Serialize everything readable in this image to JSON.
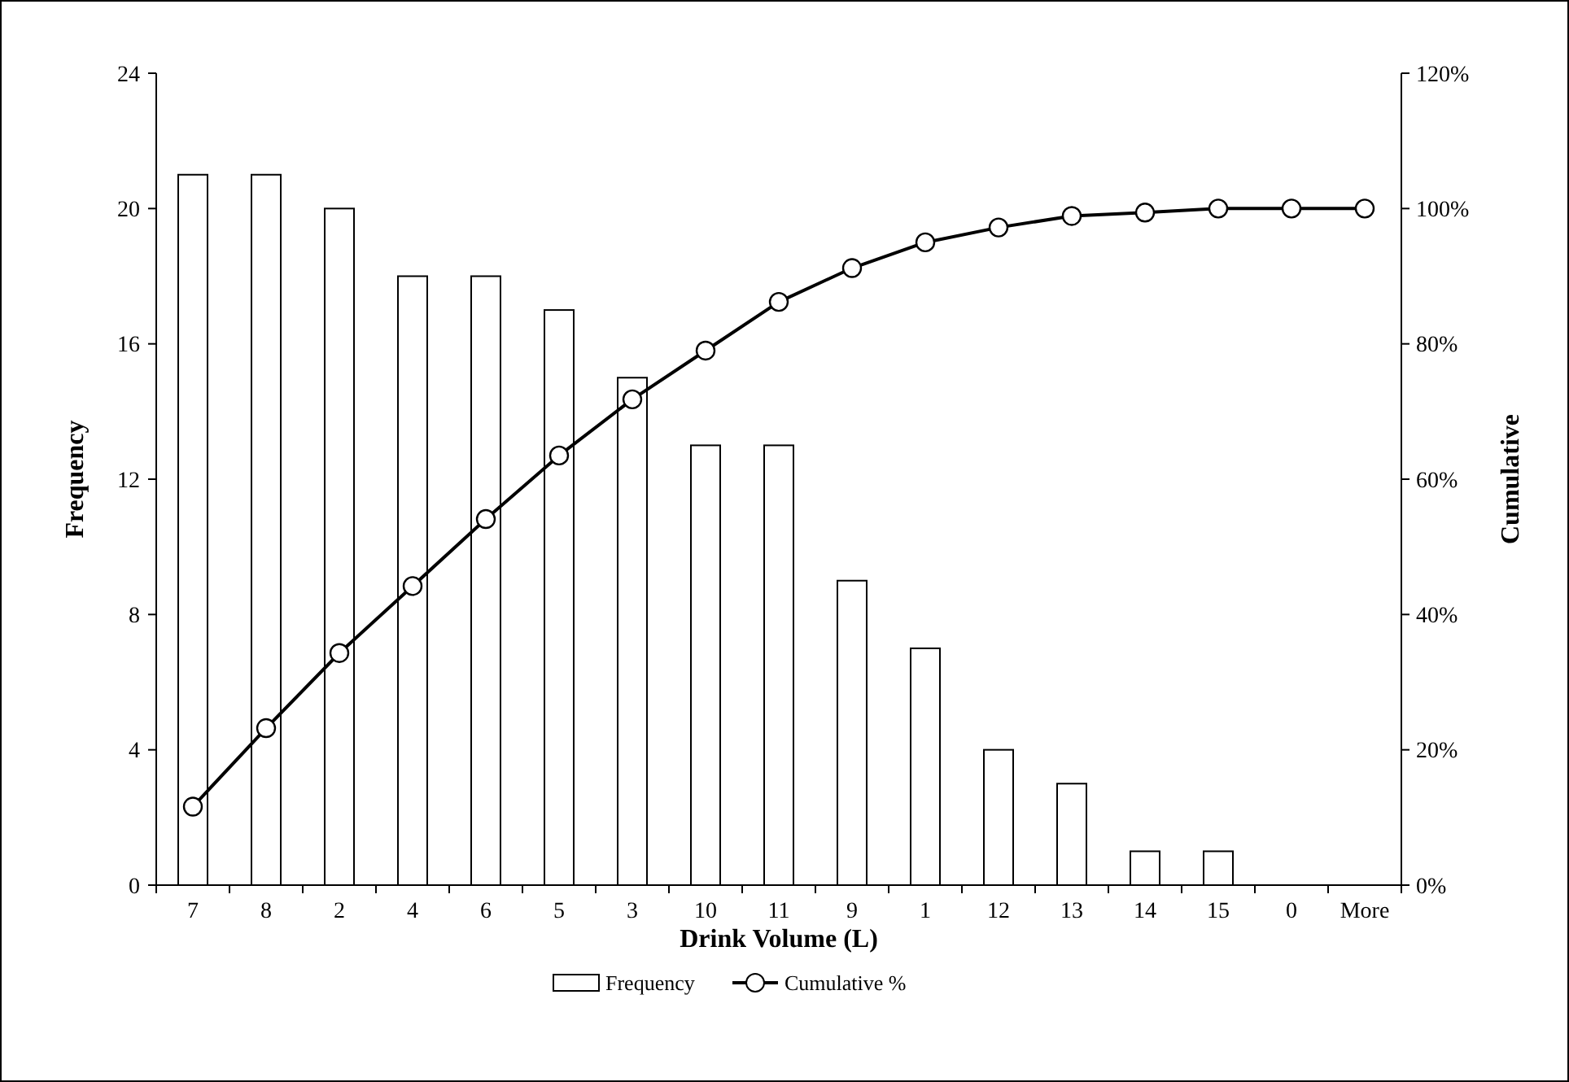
{
  "chart_data": {
    "type": "bar",
    "xlabel": "Drink Volume (L)",
    "ylabel": "Frequency",
    "y2label": "Cumulative",
    "categories": [
      "7",
      "8",
      "2",
      "4",
      "6",
      "5",
      "3",
      "10",
      "11",
      "9",
      "1",
      "12",
      "13",
      "14",
      "15",
      "0",
      "More"
    ],
    "series": [
      {
        "name": "Frequency",
        "color": "#ffffff",
        "values": [
          21,
          21,
          20,
          18,
          18,
          17,
          15,
          13,
          13,
          9,
          7,
          4,
          3,
          1,
          1,
          0,
          0
        ]
      },
      {
        "name": "Cumulative %",
        "type": "line",
        "axis": "y2",
        "color": "#000000",
        "marker": "circle",
        "values": [
          11.6,
          23.2,
          34.3,
          44.2,
          54.1,
          63.5,
          71.8,
          79.0,
          86.2,
          91.2,
          95.0,
          97.2,
          98.9,
          99.4,
          100,
          100,
          100
        ]
      }
    ],
    "ylim": [
      0,
      24
    ],
    "yticks": [
      0,
      4,
      8,
      12,
      16,
      20,
      24
    ],
    "y2lim": [
      0,
      120
    ],
    "y2ticks": [
      {
        "value": 0,
        "label": "0%"
      },
      {
        "value": 20,
        "label": "20%"
      },
      {
        "value": 40,
        "label": "40%"
      },
      {
        "value": 60,
        "label": "60%"
      },
      {
        "value": 80,
        "label": "80%"
      },
      {
        "value": 100,
        "label": "100%"
      },
      {
        "value": 120,
        "label": "120%"
      }
    ],
    "legend": "bottom"
  }
}
